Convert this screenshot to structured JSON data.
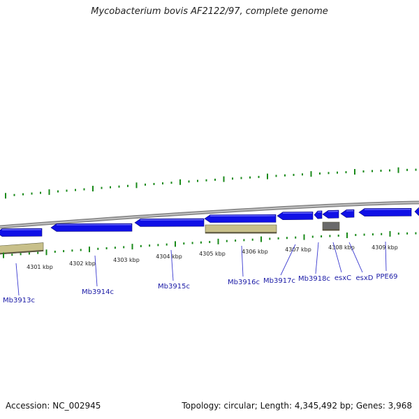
{
  "header": {
    "title": "Mycobacterium bovis AF2122/97, complete genome"
  },
  "footer": {
    "accession": "Accession: NC_002945",
    "summary": "Topology: circular; Length: 4,345,492 bp; Genes: 3,968"
  },
  "colors": {
    "backbone": "#8a8a8a",
    "gene_forward": "#1010e6",
    "gene_product": "#c8c08a",
    "gene_other": "#6a6a6a",
    "tick": "#1a8a1a",
    "label": "#1a1aa6"
  },
  "ticks": [
    "4301 kbp",
    "4302 kbp",
    "4303 kbp",
    "4304 kbp",
    "4305 kbp",
    "4306 kbp",
    "4307 kbp",
    "4308 kbp",
    "4309 kbp"
  ],
  "genes": [
    {
      "name": "Mb3913c",
      "type": "cds",
      "strand": "-"
    },
    {
      "name": "Mb3914c",
      "type": "cds",
      "strand": "-"
    },
    {
      "name": "Mb3915c",
      "type": "cds",
      "strand": "-"
    },
    {
      "name": "Mb3916c",
      "type": "cds",
      "strand": "-"
    },
    {
      "name": "Mb3917c",
      "type": "cds",
      "strand": "-"
    },
    {
      "name": "Mb3918c",
      "type": "cds",
      "strand": "-"
    },
    {
      "name": "esxC",
      "type": "cds",
      "strand": "-"
    },
    {
      "name": "esxD",
      "type": "cds",
      "strand": "-"
    },
    {
      "name": "PPE69",
      "type": "cds",
      "strand": "-"
    }
  ]
}
